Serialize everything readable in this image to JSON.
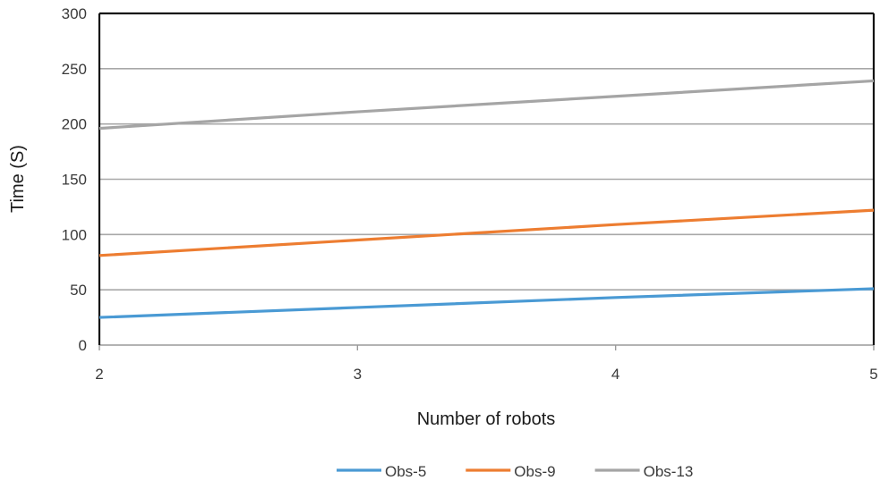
{
  "chart_data": {
    "type": "line",
    "title": "",
    "xlabel": "Number of robots",
    "ylabel": "Time (S)",
    "x": [
      2,
      3,
      4,
      5
    ],
    "xlim": [
      2,
      5
    ],
    "ylim": [
      0,
      300
    ],
    "yticks": [
      0,
      50,
      100,
      150,
      200,
      250,
      300
    ],
    "xticks": [
      2,
      3,
      4,
      5
    ],
    "grid": "horizontal",
    "legend_position": "bottom",
    "series": [
      {
        "name": "Obs-5",
        "color": "#4a9ad4",
        "values": [
          25,
          34,
          43,
          51
        ]
      },
      {
        "name": "Obs-9",
        "color": "#ed7d31",
        "values": [
          81,
          95,
          109,
          122
        ]
      },
      {
        "name": "Obs-13",
        "color": "#a5a5a5",
        "values": [
          196,
          211,
          225,
          239
        ]
      }
    ]
  }
}
